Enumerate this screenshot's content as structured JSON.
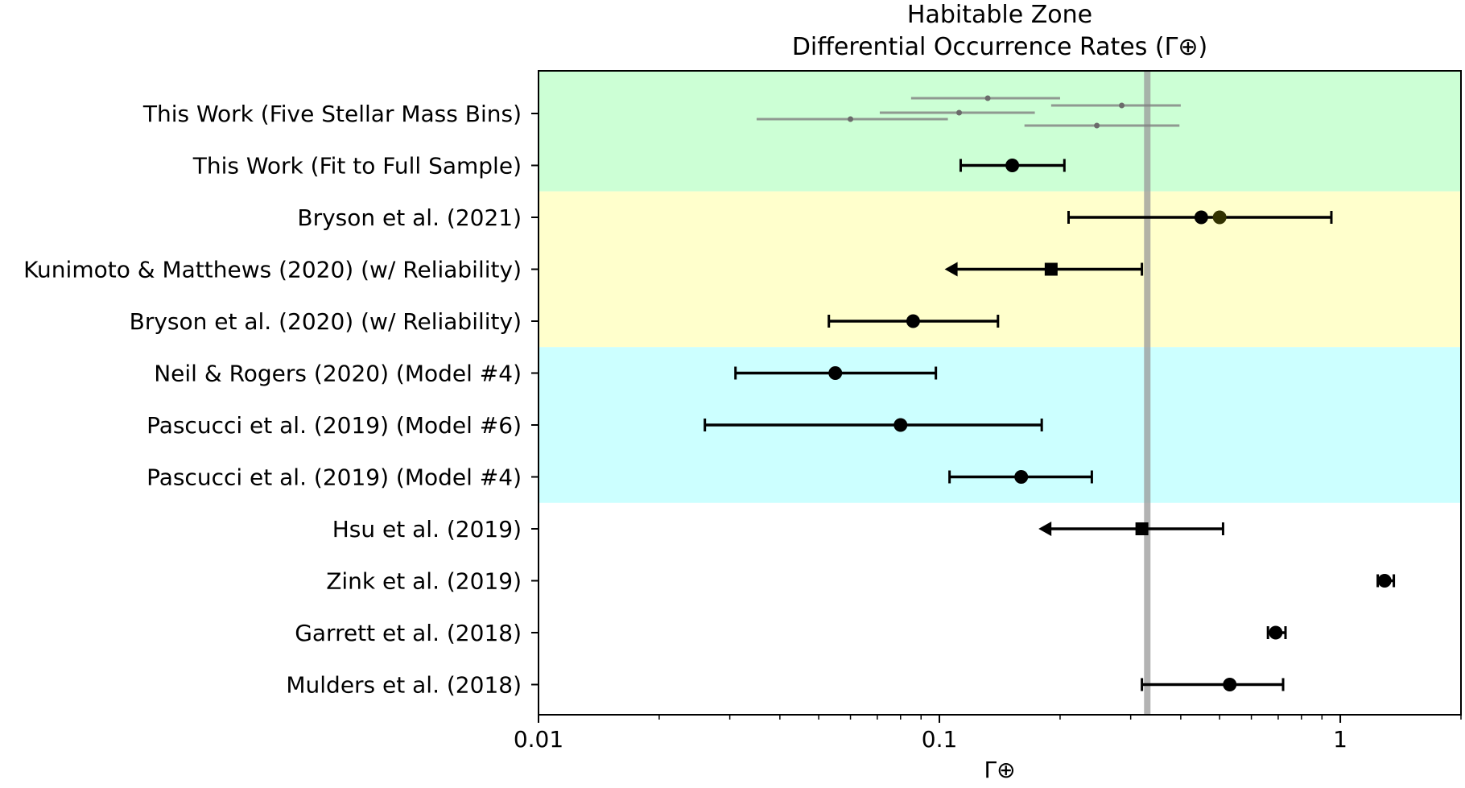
{
  "chart_data": {
    "type": "scatter",
    "title_line1": "Habitable Zone",
    "title_line2": "Differential Occurrence Rates (Γ⊕)",
    "xlabel": "Γ⊕",
    "xscale": "log",
    "xlim": [
      0.01,
      2.0
    ],
    "xticks": [
      {
        "value": 0.01,
        "label": "0.01"
      },
      {
        "value": 0.1,
        "label": "0.1"
      },
      {
        "value": 1,
        "label": "1"
      }
    ],
    "reference_line": {
      "value": 0.33,
      "color": "#999999"
    },
    "bands": [
      {
        "name": "green",
        "color": "#ccffd5",
        "from_row": 0,
        "to_row": 1
      },
      {
        "name": "yellow",
        "color": "#ffffcc",
        "from_row": 2,
        "to_row": 4
      },
      {
        "name": "cyan",
        "color": "#ccffff",
        "from_row": 5,
        "to_row": 7
      }
    ],
    "rows": [
      {
        "label": "This Work (Five Stellar Mass Bins)",
        "marker": "none",
        "points": []
      },
      {
        "label": "This Work (Fit to Full Sample)",
        "marker": "circle",
        "points": [
          {
            "x": 0.152,
            "lo": 0.113,
            "hi": 0.205
          }
        ]
      },
      {
        "label": "Bryson et al. (2021)",
        "marker": "circle",
        "points": [
          {
            "x": 0.45,
            "lo": 0.21,
            "hi": 0.95
          },
          {
            "x": 0.5,
            "lo": null,
            "hi": null
          }
        ]
      },
      {
        "label": "Kunimoto & Matthews (2020) (w/ Reliability)",
        "marker": "square",
        "upper_limit": true,
        "points": [
          {
            "x": 0.19,
            "lo": 0.105,
            "hi": 0.32
          }
        ]
      },
      {
        "label": "Bryson et al. (2020) (w/ Reliability)",
        "marker": "circle",
        "points": [
          {
            "x": 0.086,
            "lo": 0.053,
            "hi": 0.14
          }
        ]
      },
      {
        "label": "Neil & Rogers (2020) (Model #4)",
        "marker": "circle",
        "points": [
          {
            "x": 0.055,
            "lo": 0.031,
            "hi": 0.098
          }
        ]
      },
      {
        "label": "Pascucci et al. (2019) (Model #6)",
        "marker": "circle",
        "points": [
          {
            "x": 0.08,
            "lo": 0.026,
            "hi": 0.18
          }
        ]
      },
      {
        "label": "Pascucci et al. (2019) (Model #4)",
        "marker": "circle",
        "points": [
          {
            "x": 0.16,
            "lo": 0.106,
            "hi": 0.24
          }
        ]
      },
      {
        "label": "Hsu et al. (2019)",
        "marker": "square",
        "upper_limit": true,
        "points": [
          {
            "x": 0.32,
            "lo": 0.18,
            "hi": 0.51
          }
        ]
      },
      {
        "label": "Zink et al. (2019)",
        "marker": "circle",
        "points": [
          {
            "x": 1.29,
            "lo": 1.24,
            "hi": 1.36
          }
        ]
      },
      {
        "label": "Garrett et al. (2018)",
        "marker": "circle",
        "points": [
          {
            "x": 0.69,
            "lo": 0.66,
            "hi": 0.73
          }
        ]
      },
      {
        "label": "Mulders et al. (2018)",
        "marker": "circle",
        "points": [
          {
            "x": 0.53,
            "lo": 0.32,
            "hi": 0.72
          }
        ]
      }
    ],
    "mass_bins": [
      {
        "x": 0.132,
        "lo": 0.085,
        "hi": 0.2
      },
      {
        "x": 0.285,
        "lo": 0.19,
        "hi": 0.4
      },
      {
        "x": 0.112,
        "lo": 0.071,
        "hi": 0.173
      },
      {
        "x": 0.06,
        "lo": 0.035,
        "hi": 0.105
      },
      {
        "x": 0.247,
        "lo": 0.163,
        "hi": 0.397
      }
    ]
  }
}
